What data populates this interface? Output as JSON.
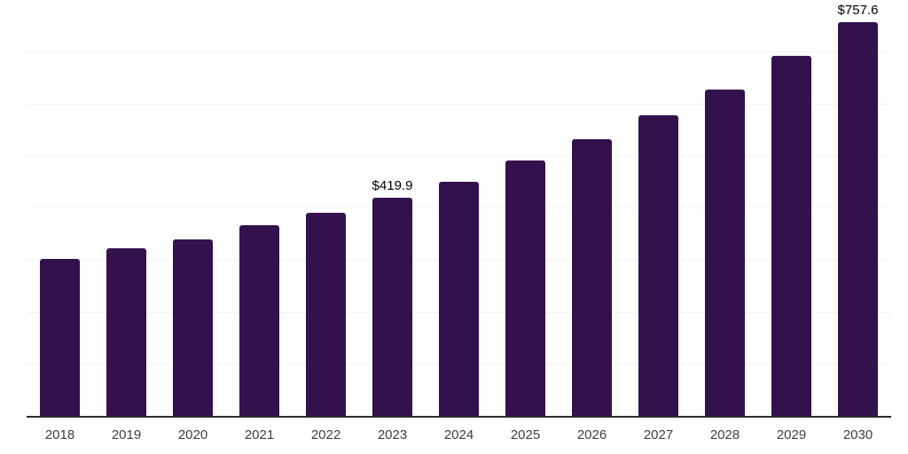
{
  "chart_data": {
    "type": "bar",
    "title": "",
    "xlabel": "",
    "ylabel": "",
    "categories": [
      "2018",
      "2019",
      "2020",
      "2021",
      "2022",
      "2023",
      "2024",
      "2025",
      "2026",
      "2027",
      "2028",
      "2029",
      "2030"
    ],
    "values": [
      302.6,
      322.6,
      340.5,
      367.0,
      391.4,
      419.9,
      450.6,
      491.1,
      532.1,
      578.2,
      628.7,
      692.5,
      757.6
    ],
    "data_labels": {
      "2023": "$419.9",
      "2030": "$757.6"
    },
    "ylim": [
      0,
      800
    ],
    "gridline_step": 100,
    "grid": "horizontal-only",
    "legend": "none",
    "y_axis_tick_labels_visible": false,
    "colors": {
      "bar": "#33114d",
      "axis_line": "#2b2b2b",
      "gridline": "#f2f2f2",
      "data_label": "#000000",
      "x_tick_label": "#3d3d3d",
      "background": "#ffffff"
    }
  }
}
